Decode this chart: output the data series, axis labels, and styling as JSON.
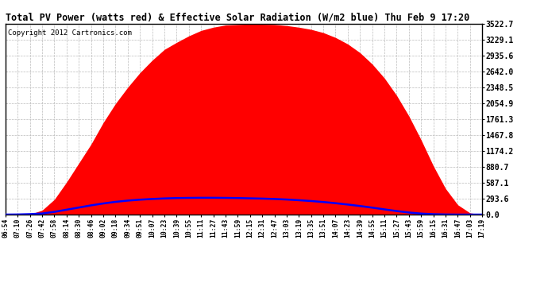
{
  "title": "Total PV Power (watts red) & Effective Solar Radiation (W/m2 blue) Thu Feb 9 17:20",
  "copyright": "Copyright 2012 Cartronics.com",
  "title_fontsize": 8.5,
  "background_color": "#ffffff",
  "plot_bg_color": "#ffffff",
  "ytick_labels": [
    "0.0",
    "293.6",
    "587.1",
    "880.7",
    "1174.2",
    "1467.8",
    "1761.3",
    "2054.9",
    "2348.5",
    "2642.0",
    "2935.6",
    "3229.1",
    "3522.7"
  ],
  "ytick_values": [
    0.0,
    293.6,
    587.1,
    880.7,
    1174.2,
    1467.8,
    1761.3,
    2054.9,
    2348.5,
    2642.0,
    2935.6,
    3229.1,
    3522.7
  ],
  "ymax": 3522.7,
  "ymin": 0.0,
  "fill_color": "#ff0000",
  "line_color": "#0000ff",
  "grid_color": "#bbbbbb",
  "xtick_labels": [
    "06:54",
    "07:10",
    "07:26",
    "07:42",
    "07:58",
    "08:14",
    "08:30",
    "08:46",
    "09:02",
    "09:18",
    "09:34",
    "09:51",
    "10:07",
    "10:23",
    "10:39",
    "10:55",
    "11:11",
    "11:27",
    "11:43",
    "11:59",
    "12:15",
    "12:31",
    "12:47",
    "13:03",
    "13:19",
    "13:35",
    "13:51",
    "14:07",
    "14:23",
    "14:39",
    "14:55",
    "15:11",
    "15:27",
    "15:43",
    "15:59",
    "16:15",
    "16:31",
    "16:47",
    "17:03",
    "17:19"
  ],
  "pv_power": [
    0,
    0,
    5,
    80,
    280,
    600,
    950,
    1300,
    1700,
    2050,
    2350,
    2620,
    2850,
    3050,
    3180,
    3300,
    3400,
    3460,
    3500,
    3510,
    3520,
    3515,
    3510,
    3490,
    3460,
    3420,
    3360,
    3270,
    3150,
    2990,
    2780,
    2520,
    2200,
    1820,
    1380,
    900,
    480,
    180,
    30,
    0
  ],
  "solar_rad": [
    0,
    2,
    8,
    20,
    50,
    90,
    130,
    170,
    205,
    235,
    258,
    275,
    288,
    298,
    305,
    308,
    310,
    310,
    308,
    305,
    300,
    295,
    288,
    278,
    265,
    250,
    232,
    210,
    185,
    158,
    128,
    96,
    65,
    38,
    18,
    7,
    2,
    0,
    0,
    0
  ]
}
